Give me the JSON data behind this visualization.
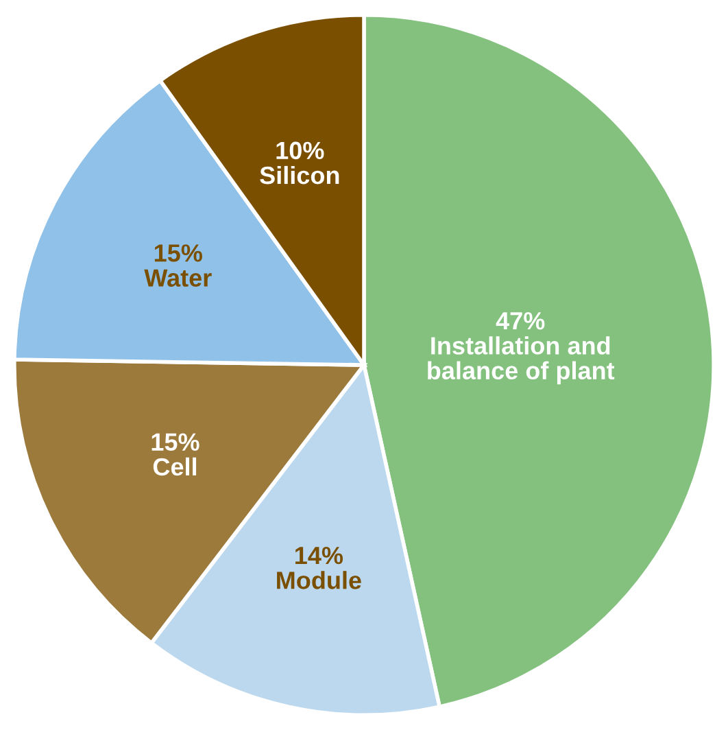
{
  "chart_data": {
    "type": "pie",
    "categories": [
      "Installation and\nbalance of plant",
      "Module",
      "Cell",
      "Water",
      "Silicon"
    ],
    "values": [
      47,
      14,
      15,
      15,
      10
    ],
    "colors": [
      "#84c17f",
      "#bcd8ee",
      "#9c7a3c",
      "#90c1e8",
      "#7a4f00"
    ],
    "value_labels": [
      "47%",
      "14%",
      "15%",
      "15%",
      "10%"
    ]
  }
}
